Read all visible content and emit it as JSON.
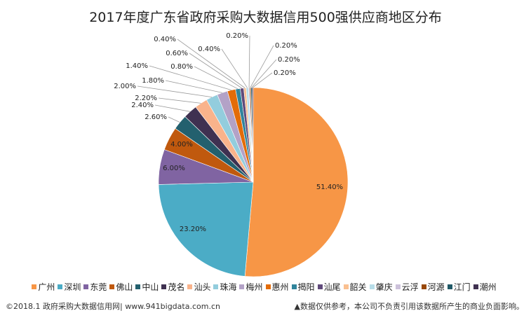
{
  "chart_data": {
    "type": "pie",
    "title": "2017年度广东省政府采购大数据信用500强供应商地区分布",
    "unit": "%",
    "categories": [
      "广州",
      "深圳",
      "东莞",
      "佛山",
      "中山",
      "茂名",
      "汕头",
      "珠海",
      "梅州",
      "惠州",
      "揭阳",
      "汕尾",
      "韶关",
      "肇庆",
      "云浮",
      "河源",
      "江门",
      "潮州"
    ],
    "values": [
      51.4,
      23.2,
      6.0,
      4.0,
      2.6,
      2.4,
      2.2,
      2.0,
      1.8,
      1.4,
      0.8,
      0.6,
      0.4,
      0.4,
      0.2,
      0.2,
      0.2,
      0.2
    ],
    "labels": [
      "51.40%",
      "23.20%",
      "6.00%",
      "4.00%",
      "2.60%",
      "2.40%",
      "2.20%",
      "2.00%",
      "1.80%",
      "1.40%",
      "0.80%",
      "0.60%",
      "0.40%",
      "0.40%",
      "0.20%",
      "0.20%",
      "0.20%",
      "0.20%"
    ],
    "colors": [
      "#F79646",
      "#4BACC6",
      "#8064A2",
      "#C0590E",
      "#23606E",
      "#3F3151",
      "#F9B38B",
      "#93CDDD",
      "#B3A2C7",
      "#E36C09",
      "#31859C",
      "#604A7B",
      "#FAC090",
      "#B7DDE8",
      "#CCC1DA",
      "#984807",
      "#215967",
      "#403151"
    ],
    "legend_position": "bottom"
  },
  "footer": {
    "left": "©2018.1 政府采购大数据信用网| www.941bigdata.com.cn",
    "right": "▲数据仅供参考，本公司不负责引用该数据所产生的商业负面影响。"
  }
}
